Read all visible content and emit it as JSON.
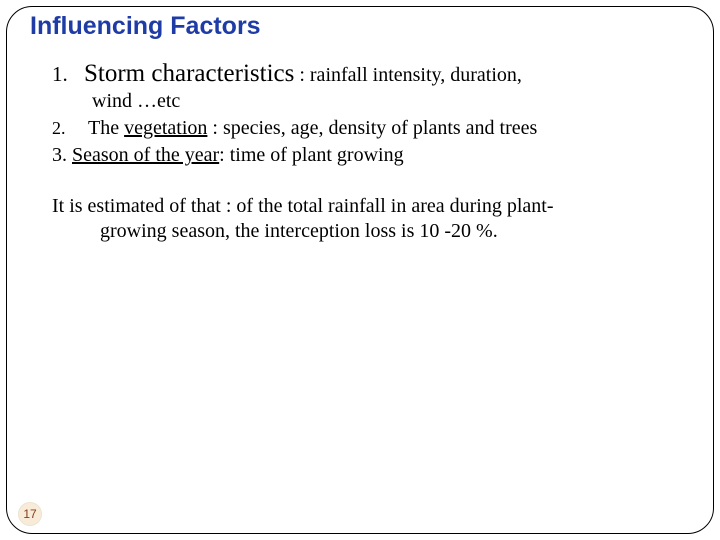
{
  "title": "Influencing Factors",
  "item1": {
    "number": "1.",
    "heading": "Storm characteristics",
    "tail": " : rainfall intensity, duration,",
    "cont": "wind …etc"
  },
  "item2": {
    "number": "2.",
    "text_before": "The ",
    "underlined": "vegetation",
    "text_after": " : species, age, density of plants and trees"
  },
  "item3": {
    "prefix": "3. ",
    "underlined": "Season of the year",
    "after": ": time of plant growing"
  },
  "para": {
    "line1": "It is estimated of that : of the total rainfall in area during plant-",
    "line2": "growing season, the interception loss is 10 -20 %."
  },
  "page_number": "17",
  "colors": {
    "title": "#1f3ca6",
    "text": "#000000",
    "page_bg": "#f8ecd9",
    "page_fg": "#8a3a1a",
    "border": "#000000",
    "background": "#ffffff"
  }
}
